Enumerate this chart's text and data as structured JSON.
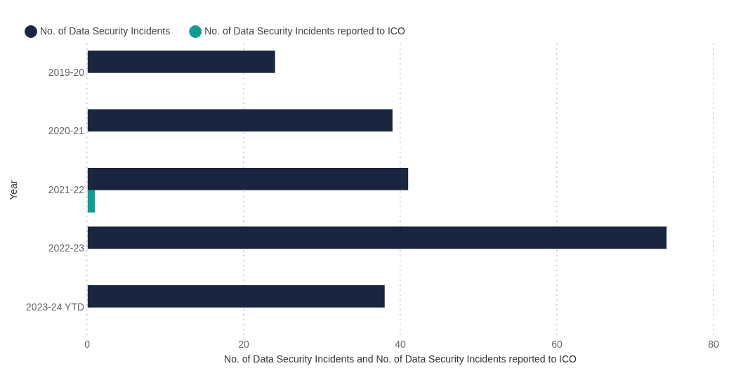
{
  "chart_data": {
    "type": "bar",
    "orientation": "horizontal",
    "xlabel": "No. of Data Security Incidents and No. of Data Security Incidents reported to ICO",
    "ylabel": "Year",
    "categories": [
      "2019-20",
      "2020-21",
      "2021-22",
      "2022-23",
      "2023-24 YTD"
    ],
    "series": [
      {
        "name": "No. of Data Security Incidents",
        "color": "#1a2540",
        "values": [
          24,
          39,
          41,
          74,
          38
        ]
      },
      {
        "name": "No. of Data Security Incidents reported to ICO",
        "color": "#119d8f",
        "values": [
          null,
          null,
          1,
          null,
          null
        ]
      }
    ],
    "xlim": [
      0,
      80
    ],
    "xticks": [
      0,
      20,
      40,
      60,
      80
    ],
    "grid": "x",
    "legend": "top left"
  }
}
